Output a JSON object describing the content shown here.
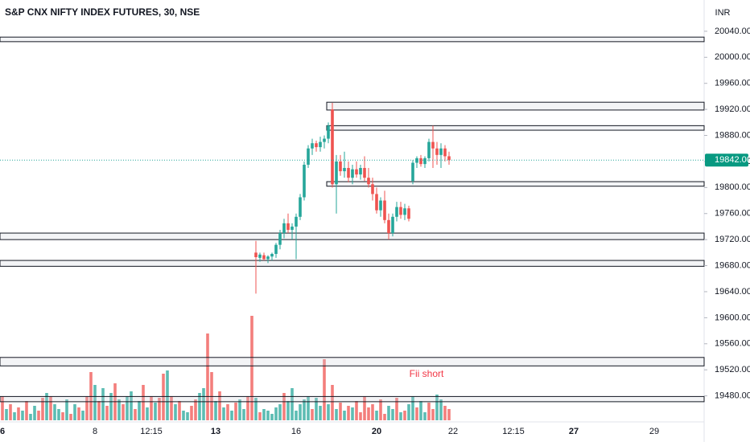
{
  "chart_data": {
    "type": "candlestick",
    "title": "S&P CNX NIFTY INDEX FUTURES, 30, NSE",
    "currency": "INR",
    "annotation": "Fii short",
    "up_color": "#26a69a",
    "down_color": "#ef5350",
    "ylim": [
      19440,
      20088
    ],
    "yticks": [
      {
        "value": 19480,
        "label": "19480.00"
      },
      {
        "value": 19520,
        "label": "19520.00"
      },
      {
        "value": 19560,
        "label": "19560.00"
      },
      {
        "value": 19600,
        "label": "19600.00"
      },
      {
        "value": 19640,
        "label": "19640.00"
      },
      {
        "value": 19680,
        "label": "19680.00"
      },
      {
        "value": 19720,
        "label": "19720.00"
      },
      {
        "value": 19760,
        "label": "19760.00"
      },
      {
        "value": 19800,
        "label": "19800.00"
      },
      {
        "value": 19840,
        "label": "19840.00"
      },
      {
        "value": 19880,
        "label": "19880.00"
      },
      {
        "value": 19920,
        "label": "19920.00"
      },
      {
        "value": 19960,
        "label": "19960.00"
      },
      {
        "value": 20000,
        "label": "20000.00"
      },
      {
        "value": 20040,
        "label": "20040.00"
      }
    ],
    "last_price": {
      "value": 19842,
      "label": "19842.00"
    },
    "x_labels": [
      {
        "bar": 0,
        "label": "6",
        "bold": true
      },
      {
        "bar": 23,
        "label": "8"
      },
      {
        "bar": 37,
        "label": "12:15"
      },
      {
        "bar": 53,
        "label": "13",
        "bold": true
      },
      {
        "bar": 73,
        "label": "16"
      },
      {
        "bar": 93,
        "label": "20",
        "bold": true
      },
      {
        "bar": 112,
        "label": "22"
      },
      {
        "bar": 127,
        "label": "12:15"
      },
      {
        "bar": 142,
        "label": "27",
        "bold": true
      },
      {
        "bar": 162,
        "label": "29"
      }
    ],
    "levels": [
      {
        "top": 20031,
        "bottom": 20024,
        "from_bar": 0
      },
      {
        "top": 19931,
        "bottom": 19919,
        "from_bar": 81
      },
      {
        "top": 19895,
        "bottom": 19888,
        "from_bar": 81
      },
      {
        "top": 19809,
        "bottom": 19802,
        "from_bar": 81
      },
      {
        "top": 19730,
        "bottom": 19720,
        "from_bar": 0
      },
      {
        "top": 19688,
        "bottom": 19679,
        "from_bar": 0
      },
      {
        "top": 19539,
        "bottom": 19526,
        "from_bar": 0
      },
      {
        "top": 19479,
        "bottom": 19471,
        "from_bar": 0
      }
    ],
    "candles": [
      null,
      null,
      null,
      null,
      null,
      null,
      null,
      null,
      null,
      null,
      null,
      null,
      null,
      null,
      null,
      null,
      null,
      null,
      null,
      null,
      null,
      null,
      null,
      null,
      null,
      null,
      null,
      null,
      null,
      null,
      null,
      null,
      null,
      null,
      null,
      null,
      null,
      null,
      null,
      null,
      null,
      null,
      null,
      null,
      null,
      null,
      null,
      null,
      null,
      null,
      null,
      null,
      null,
      null,
      null,
      null,
      null,
      null,
      null,
      null,
      null,
      null,
      null,
      [
        19700,
        19718,
        19637,
        19693
      ],
      [
        19692,
        19700,
        19686,
        19697
      ],
      [
        19696,
        19700,
        19688,
        19690
      ],
      [
        19690,
        19696,
        19684,
        19694
      ],
      [
        19694,
        19700,
        19688,
        19698
      ],
      [
        19698,
        19715,
        19692,
        19712
      ],
      [
        19712,
        19735,
        19705,
        19730
      ],
      [
        19730,
        19752,
        19722,
        19745
      ],
      [
        19745,
        19760,
        19730,
        19735
      ],
      [
        19735,
        19745,
        19720,
        19740
      ],
      [
        19740,
        19760,
        19690,
        19755
      ],
      [
        19755,
        19790,
        19750,
        19785
      ],
      [
        19785,
        19840,
        19780,
        19835
      ],
      [
        19835,
        19865,
        19830,
        19860
      ],
      [
        19860,
        19875,
        19850,
        19868
      ],
      [
        19868,
        19872,
        19855,
        19862
      ],
      [
        19862,
        19878,
        19855,
        19870
      ],
      [
        19870,
        19880,
        19860,
        19875
      ],
      [
        19875,
        19900,
        19868,
        19895
      ],
      [
        19920,
        19930,
        19800,
        19805
      ],
      [
        19805,
        19850,
        19760,
        19840
      ],
      [
        19840,
        19850,
        19818,
        19825
      ],
      [
        19825,
        19855,
        19815,
        19830
      ],
      [
        19830,
        19840,
        19808,
        19815
      ],
      [
        19815,
        19835,
        19805,
        19828
      ],
      [
        19828,
        19840,
        19815,
        19820
      ],
      [
        19820,
        19835,
        19812,
        19830
      ],
      [
        19830,
        19848,
        19810,
        19815
      ],
      [
        19815,
        19830,
        19800,
        19805
      ],
      [
        19805,
        19815,
        19780,
        19790
      ],
      [
        19790,
        19800,
        19760,
        19765
      ],
      [
        19765,
        19785,
        19755,
        19780
      ],
      [
        19780,
        19795,
        19745,
        19750
      ],
      [
        19750,
        19760,
        19720,
        19730
      ],
      [
        19730,
        19760,
        19725,
        19755
      ],
      [
        19755,
        19778,
        19748,
        19770
      ],
      [
        19770,
        19778,
        19752,
        19758
      ],
      [
        19758,
        19775,
        19750,
        19768
      ],
      [
        19768,
        19772,
        19748,
        19752
      ],
      [
        19810,
        19842,
        19805,
        19838
      ],
      [
        19838,
        19848,
        19830,
        19845
      ],
      [
        19845,
        19850,
        19832,
        19836
      ],
      [
        19836,
        19848,
        19830,
        19845
      ],
      [
        19845,
        19875,
        19840,
        19870
      ],
      [
        19870,
        19895,
        19830,
        19860
      ],
      [
        19860,
        19870,
        19835,
        19850
      ],
      [
        19850,
        19868,
        19830,
        19860
      ],
      [
        19860,
        19865,
        19840,
        19848
      ],
      [
        19848,
        19855,
        19835,
        19842
      ]
    ],
    "volume": [
      30,
      14,
      20,
      10,
      16,
      12,
      24,
      8,
      18,
      12,
      28,
      34,
      30,
      20,
      14,
      10,
      26,
      8,
      20,
      16,
      12,
      30,
      60,
      44,
      24,
      40,
      18,
      34,
      46,
      26,
      20,
      30,
      36,
      14,
      24,
      44,
      16,
      30,
      22,
      28,
      58,
      62,
      30,
      20,
      24,
      12,
      10,
      18,
      26,
      34,
      40,
      108,
      60,
      24,
      36,
      16,
      20,
      12,
      22,
      26,
      14,
      30,
      130,
      28,
      10,
      14,
      12,
      8,
      16,
      20,
      34,
      24,
      40,
      12,
      20,
      26,
      30,
      14,
      28,
      18,
      76,
      20,
      44,
      14,
      22,
      12,
      18,
      16,
      24,
      10,
      30,
      16,
      20,
      12,
      26,
      8,
      18,
      14,
      28,
      10,
      12,
      20,
      30,
      16,
      24,
      10,
      22,
      14,
      32,
      26,
      18,
      14
    ],
    "volume_up": [
      false,
      true,
      false,
      true,
      false,
      true,
      false,
      true,
      true,
      false,
      false,
      true,
      false,
      true,
      true,
      false,
      true,
      false,
      true,
      false,
      true,
      false,
      false,
      true,
      false,
      true,
      false,
      true,
      false,
      true,
      false,
      true,
      true,
      false,
      true,
      false,
      true,
      false,
      true,
      false,
      false,
      true,
      false,
      true,
      false,
      true,
      true,
      false,
      false,
      true,
      true,
      false,
      false,
      true,
      false,
      true,
      false,
      true,
      false,
      true,
      true,
      false,
      false,
      true,
      false,
      true,
      true,
      true,
      true,
      true,
      false,
      true,
      true,
      true,
      true,
      true,
      true,
      false,
      true,
      true,
      false,
      true,
      false,
      true,
      false,
      true,
      false,
      true,
      false,
      false,
      false,
      false,
      false,
      true,
      false,
      false,
      true,
      true,
      false,
      true,
      false,
      true,
      true,
      false,
      true,
      true,
      false,
      false,
      true,
      true,
      false,
      false
    ]
  }
}
